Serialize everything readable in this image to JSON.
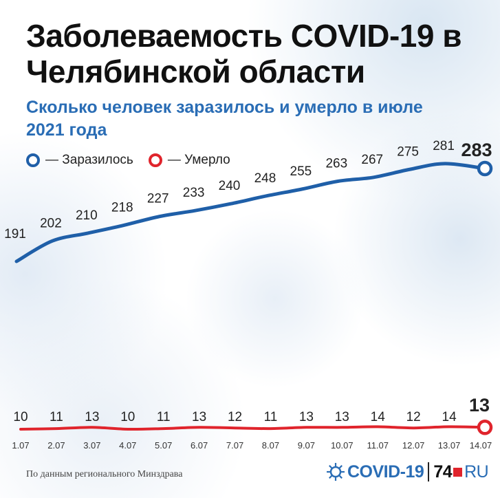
{
  "title": "Заболеваемость COVID-19 в Челябинской области",
  "subtitle": "Сколько человек заразилось и умерло в июле 2021 года",
  "legend": {
    "infected": "— Заразилось",
    "died": "— Умерло"
  },
  "colors": {
    "infected": "#1f5fa8",
    "died": "#e0242c",
    "title": "#111111",
    "subtitle": "#2a6db5"
  },
  "source": "По данным регионального Минздрава",
  "logo": {
    "covid": "COVID-19",
    "num": "74",
    "ru": "RU"
  },
  "chart_data": {
    "type": "line",
    "categories": [
      "1.07",
      "2.07",
      "3.07",
      "4.07",
      "5.07",
      "6.07",
      "7.07",
      "8.07",
      "9.07",
      "10.07",
      "11.07",
      "12.07",
      "13.07",
      "14.07"
    ],
    "series": [
      {
        "name": "Заразилось",
        "values": [
          191,
          202,
          210,
          218,
          227,
          233,
          240,
          248,
          255,
          263,
          267,
          275,
          281,
          283
        ]
      },
      {
        "name": "Умерло",
        "values": [
          10,
          11,
          13,
          10,
          11,
          13,
          12,
          11,
          13,
          13,
          14,
          12,
          14,
          13
        ]
      }
    ],
    "highlight_last": true,
    "grid": false,
    "legend_position": "top-left"
  }
}
